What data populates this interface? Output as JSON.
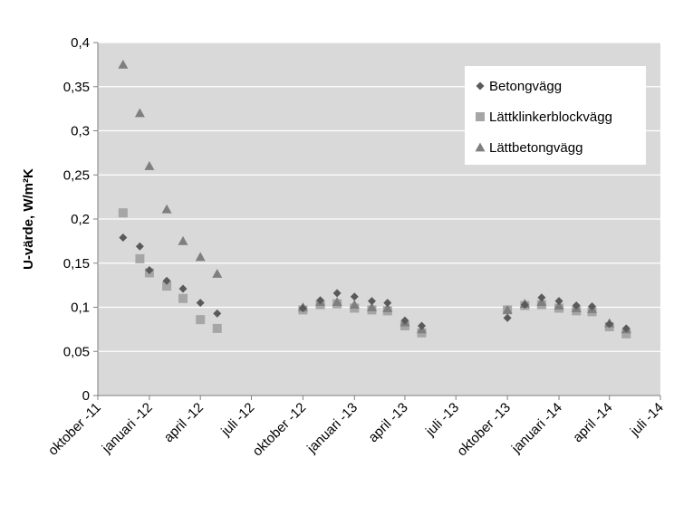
{
  "chart_data": {
    "type": "scatter",
    "ylabel": "U-värde, W/m²K",
    "xlabel": "",
    "ylim": [
      0,
      0.4
    ],
    "ytick_step": 0.05,
    "y_tick_labels": [
      "0",
      "0,05",
      "0,1",
      "0,15",
      "0,2",
      "0,25",
      "0,3",
      "0,35",
      "0,4"
    ],
    "x_axis_start": "2011-10-01",
    "x_axis_end": "2014-07-01",
    "x_tick_labels": [
      {
        "date": "2011-10-01",
        "label": "oktober -11"
      },
      {
        "date": "2012-01-01",
        "label": "januari -12"
      },
      {
        "date": "2012-04-01",
        "label": "april -12"
      },
      {
        "date": "2012-07-01",
        "label": "juli -12"
      },
      {
        "date": "2012-10-01",
        "label": "oktober -12"
      },
      {
        "date": "2013-01-01",
        "label": "januari -13"
      },
      {
        "date": "2013-04-01",
        "label": "april -13"
      },
      {
        "date": "2013-07-01",
        "label": "juli -13"
      },
      {
        "date": "2013-10-01",
        "label": "oktober -13"
      },
      {
        "date": "2014-01-01",
        "label": "januari -14"
      },
      {
        "date": "2014-04-01",
        "label": "april -14"
      },
      {
        "date": "2014-07-01",
        "label": "juli -14"
      }
    ],
    "grid": "horizontal",
    "legend_position": "top-right",
    "series": [
      {
        "name": "Betongvägg",
        "marker": "diamond",
        "color": "#5a5a5a",
        "points": [
          {
            "x": "2011-11-15",
            "y": 0.179
          },
          {
            "x": "2011-12-15",
            "y": 0.169
          },
          {
            "x": "2012-01-01",
            "y": 0.142
          },
          {
            "x": "2012-02-01",
            "y": 0.13
          },
          {
            "x": "2012-03-01",
            "y": 0.121
          },
          {
            "x": "2012-04-01",
            "y": 0.105
          },
          {
            "x": "2012-05-01",
            "y": 0.093
          },
          {
            "x": "2012-10-01",
            "y": 0.099
          },
          {
            "x": "2012-11-01",
            "y": 0.108
          },
          {
            "x": "2012-12-01",
            "y": 0.116
          },
          {
            "x": "2013-01-01",
            "y": 0.112
          },
          {
            "x": "2013-02-01",
            "y": 0.107
          },
          {
            "x": "2013-03-01",
            "y": 0.105
          },
          {
            "x": "2013-04-01",
            "y": 0.085
          },
          {
            "x": "2013-05-01",
            "y": 0.079
          },
          {
            "x": "2013-10-01",
            "y": 0.088
          },
          {
            "x": "2013-11-01",
            "y": 0.103
          },
          {
            "x": "2013-12-01",
            "y": 0.111
          },
          {
            "x": "2014-01-01",
            "y": 0.107
          },
          {
            "x": "2014-02-01",
            "y": 0.102
          },
          {
            "x": "2014-03-01",
            "y": 0.101
          },
          {
            "x": "2014-04-01",
            "y": 0.081
          },
          {
            "x": "2014-05-01",
            "y": 0.076
          }
        ]
      },
      {
        "name": "Lättklinkerblockvägg",
        "marker": "square",
        "color": "#a6a6a6",
        "points": [
          {
            "x": "2011-11-15",
            "y": 0.207
          },
          {
            "x": "2011-12-15",
            "y": 0.155
          },
          {
            "x": "2012-01-01",
            "y": 0.139
          },
          {
            "x": "2012-02-01",
            "y": 0.124
          },
          {
            "x": "2012-03-01",
            "y": 0.11
          },
          {
            "x": "2012-04-01",
            "y": 0.086
          },
          {
            "x": "2012-05-01",
            "y": 0.076
          },
          {
            "x": "2012-10-01",
            "y": 0.097
          },
          {
            "x": "2012-11-01",
            "y": 0.103
          },
          {
            "x": "2012-12-01",
            "y": 0.104
          },
          {
            "x": "2013-01-01",
            "y": 0.099
          },
          {
            "x": "2013-02-01",
            "y": 0.097
          },
          {
            "x": "2013-03-01",
            "y": 0.096
          },
          {
            "x": "2013-04-01",
            "y": 0.079
          },
          {
            "x": "2013-05-01",
            "y": 0.071
          },
          {
            "x": "2013-10-01",
            "y": 0.097
          },
          {
            "x": "2013-11-01",
            "y": 0.102
          },
          {
            "x": "2013-12-01",
            "y": 0.103
          },
          {
            "x": "2014-01-01",
            "y": 0.099
          },
          {
            "x": "2014-02-01",
            "y": 0.096
          },
          {
            "x": "2014-03-01",
            "y": 0.095
          },
          {
            "x": "2014-04-01",
            "y": 0.078
          },
          {
            "x": "2014-05-01",
            "y": 0.07
          }
        ]
      },
      {
        "name": "Lättbetongvägg",
        "marker": "triangle",
        "color": "#7f7f7f",
        "points": [
          {
            "x": "2011-11-15",
            "y": 0.375
          },
          {
            "x": "2011-12-15",
            "y": 0.32
          },
          {
            "x": "2012-01-01",
            "y": 0.26
          },
          {
            "x": "2012-02-01",
            "y": 0.211
          },
          {
            "x": "2012-03-01",
            "y": 0.175
          },
          {
            "x": "2012-04-01",
            "y": 0.157
          },
          {
            "x": "2012-05-01",
            "y": 0.138
          },
          {
            "x": "2012-10-01",
            "y": 0.1
          },
          {
            "x": "2012-11-01",
            "y": 0.106
          },
          {
            "x": "2012-12-01",
            "y": 0.106
          },
          {
            "x": "2013-01-01",
            "y": 0.103
          },
          {
            "x": "2013-02-01",
            "y": 0.1
          },
          {
            "x": "2013-03-01",
            "y": 0.099
          },
          {
            "x": "2013-04-01",
            "y": 0.083
          },
          {
            "x": "2013-05-01",
            "y": 0.075
          },
          {
            "x": "2013-10-01",
            "y": 0.097
          },
          {
            "x": "2013-11-01",
            "y": 0.104
          },
          {
            "x": "2013-12-01",
            "y": 0.106
          },
          {
            "x": "2014-01-01",
            "y": 0.102
          },
          {
            "x": "2014-02-01",
            "y": 0.099
          },
          {
            "x": "2014-03-01",
            "y": 0.098
          },
          {
            "x": "2014-04-01",
            "y": 0.082
          },
          {
            "x": "2014-05-01",
            "y": 0.075
          }
        ]
      }
    ],
    "colors": {
      "plot_background": "#d9d9d9",
      "gridline": "#ffffff",
      "axis": "#808080"
    }
  }
}
